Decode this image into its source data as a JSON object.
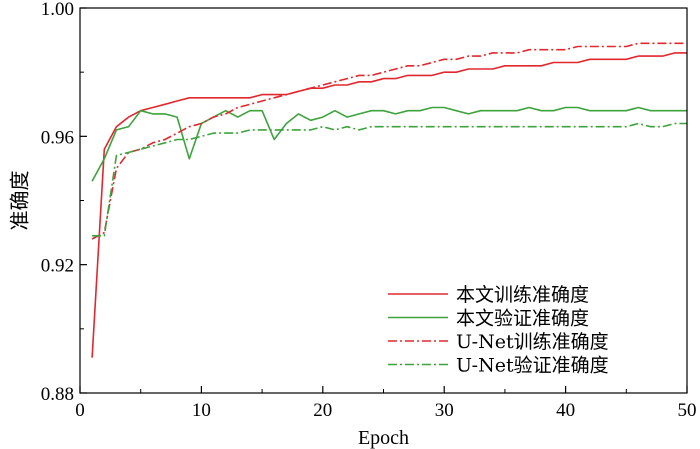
{
  "chart_data": {
    "type": "line",
    "title": "",
    "xlabel": "Epoch",
    "ylabel": "准确度",
    "xlim": [
      0,
      50
    ],
    "ylim": [
      0.88,
      1.0
    ],
    "x_ticks": [
      "0",
      "10",
      "20",
      "30",
      "40",
      "50"
    ],
    "y_ticks": [
      "0.88",
      "0.92",
      "0.96",
      "1.00"
    ],
    "grid": false,
    "legend_position": "bottom-right",
    "x": [
      1,
      2,
      3,
      4,
      5,
      6,
      7,
      8,
      9,
      10,
      11,
      12,
      13,
      14,
      15,
      16,
      17,
      18,
      19,
      20,
      21,
      22,
      23,
      24,
      25,
      26,
      27,
      28,
      29,
      30,
      31,
      32,
      33,
      34,
      35,
      36,
      37,
      38,
      39,
      40,
      41,
      42,
      43,
      44,
      45,
      46,
      47,
      48,
      49,
      50
    ],
    "series": [
      {
        "name": "本文训练准确度",
        "color": "#e0282e",
        "style": "solid",
        "values": [
          0.891,
          0.956,
          0.963,
          0.966,
          0.968,
          0.969,
          0.97,
          0.971,
          0.972,
          0.972,
          0.972,
          0.972,
          0.972,
          0.972,
          0.973,
          0.973,
          0.973,
          0.974,
          0.975,
          0.975,
          0.976,
          0.976,
          0.977,
          0.977,
          0.978,
          0.978,
          0.979,
          0.979,
          0.979,
          0.98,
          0.98,
          0.981,
          0.981,
          0.981,
          0.982,
          0.982,
          0.982,
          0.982,
          0.983,
          0.983,
          0.983,
          0.984,
          0.984,
          0.984,
          0.984,
          0.985,
          0.985,
          0.985,
          0.986,
          0.986
        ]
      },
      {
        "name": "本文验证准确度",
        "color": "#3da33d",
        "style": "solid",
        "values": [
          0.946,
          0.953,
          0.962,
          0.963,
          0.968,
          0.967,
          0.967,
          0.966,
          0.953,
          0.964,
          0.966,
          0.968,
          0.966,
          0.968,
          0.968,
          0.959,
          0.964,
          0.967,
          0.965,
          0.966,
          0.968,
          0.966,
          0.967,
          0.968,
          0.968,
          0.967,
          0.968,
          0.968,
          0.969,
          0.969,
          0.968,
          0.967,
          0.968,
          0.968,
          0.968,
          0.968,
          0.969,
          0.968,
          0.968,
          0.969,
          0.969,
          0.968,
          0.968,
          0.968,
          0.968,
          0.969,
          0.968,
          0.968,
          0.968,
          0.968
        ]
      },
      {
        "name": "U-Net训练准确度",
        "color": "#e0282e",
        "style": "dashdot",
        "values": [
          0.928,
          0.93,
          0.95,
          0.955,
          0.956,
          0.958,
          0.959,
          0.961,
          0.963,
          0.964,
          0.966,
          0.967,
          0.969,
          0.97,
          0.971,
          0.972,
          0.973,
          0.974,
          0.975,
          0.976,
          0.977,
          0.978,
          0.979,
          0.979,
          0.98,
          0.981,
          0.982,
          0.982,
          0.983,
          0.984,
          0.984,
          0.985,
          0.985,
          0.986,
          0.986,
          0.986,
          0.987,
          0.987,
          0.987,
          0.987,
          0.988,
          0.988,
          0.988,
          0.988,
          0.988,
          0.989,
          0.989,
          0.989,
          0.989,
          0.989
        ]
      },
      {
        "name": "U-Net验证准确度",
        "color": "#3da33d",
        "style": "dashdot",
        "values": [
          0.929,
          0.929,
          0.954,
          0.955,
          0.956,
          0.957,
          0.958,
          0.959,
          0.959,
          0.96,
          0.961,
          0.961,
          0.961,
          0.962,
          0.962,
          0.962,
          0.962,
          0.962,
          0.962,
          0.963,
          0.962,
          0.963,
          0.962,
          0.963,
          0.963,
          0.963,
          0.963,
          0.963,
          0.963,
          0.963,
          0.963,
          0.963,
          0.963,
          0.963,
          0.963,
          0.963,
          0.963,
          0.963,
          0.963,
          0.963,
          0.963,
          0.963,
          0.963,
          0.963,
          0.963,
          0.964,
          0.963,
          0.963,
          0.964,
          0.964
        ]
      }
    ]
  }
}
